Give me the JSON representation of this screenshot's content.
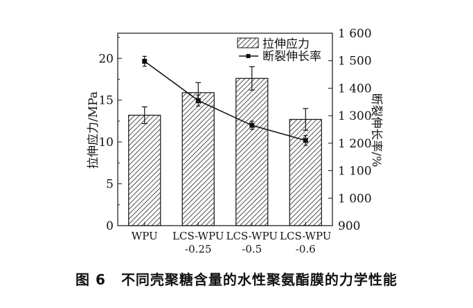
{
  "caption": {
    "figure_label": "图 6",
    "title": "不同壳聚糖含量的水性聚氨酯膜的力学性能"
  },
  "chart_data": {
    "type": "bar",
    "categories": [
      "WPU",
      "LCS-WPU\n-0.25",
      "LCS-WPU\n-0.5",
      "LCS-WPU\n-0.6"
    ],
    "ylabel": "拉伸应力/MPa",
    "ylim": [
      0,
      23
    ],
    "yticks": [
      "0",
      "5",
      "10",
      "15",
      "20"
    ],
    "y2label": "断裂伸长率/%",
    "y2lim": [
      900,
      1600
    ],
    "y2ticks": [
      "900",
      "1 000",
      "1 100",
      "1 200",
      "1 300",
      "1 400",
      "1 500",
      "1 600"
    ],
    "legend_position": "top-right",
    "series": [
      {
        "name": "拉伸应力",
        "kind": "bar",
        "axis": "left",
        "pattern": "hatched",
        "values": [
          13.2,
          15.9,
          17.6,
          12.7
        ],
        "errors": [
          1.0,
          1.2,
          1.4,
          1.3
        ]
      },
      {
        "name": "断裂伸长率",
        "kind": "line",
        "axis": "right",
        "marker": "square",
        "values": [
          1498,
          1355,
          1265,
          1210
        ],
        "errors": [
          18,
          20,
          15,
          18
        ]
      }
    ]
  }
}
